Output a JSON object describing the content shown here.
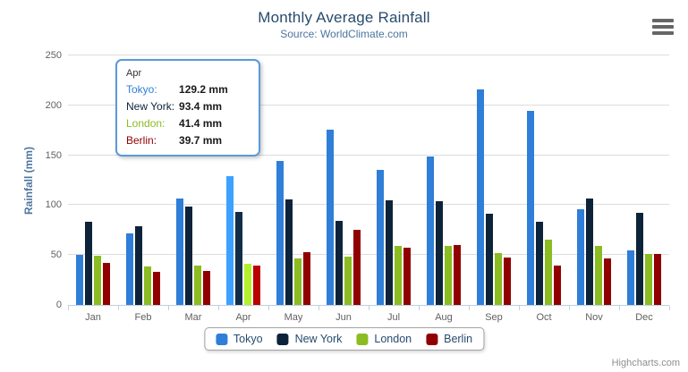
{
  "header": {
    "title": "Monthly Average Rainfall",
    "subtitle": "Source: WorldClimate.com"
  },
  "chart_data": {
    "type": "bar",
    "title": "Monthly Average Rainfall",
    "subtitle": "Source: WorldClimate.com",
    "categories": [
      "Jan",
      "Feb",
      "Mar",
      "Apr",
      "May",
      "Jun",
      "Jul",
      "Aug",
      "Sep",
      "Oct",
      "Nov",
      "Dec"
    ],
    "series": [
      {
        "name": "Tokyo",
        "color": "#2f7ed8",
        "values": [
          49.9,
          71.5,
          106.4,
          129.2,
          144.0,
          176.0,
          135.6,
          148.5,
          216.4,
          194.1,
          95.6,
          54.4
        ]
      },
      {
        "name": "New York",
        "color": "#0d233a",
        "values": [
          83.6,
          78.8,
          98.5,
          93.4,
          106.0,
          84.5,
          105.0,
          104.3,
          91.2,
          83.5,
          106.6,
          92.3
        ]
      },
      {
        "name": "London",
        "color": "#8bbc21",
        "values": [
          48.9,
          38.8,
          39.3,
          41.4,
          47.0,
          48.3,
          59.0,
          59.6,
          52.4,
          65.2,
          59.3,
          51.2
        ]
      },
      {
        "name": "Berlin",
        "color": "#910000",
        "values": [
          42.4,
          33.2,
          34.5,
          39.7,
          52.6,
          75.5,
          57.4,
          60.4,
          47.6,
          39.1,
          46.8,
          51.1
        ]
      }
    ],
    "xlabel": "",
    "ylabel": "Rainfall (mm)",
    "ylim": [
      0,
      250
    ],
    "yticks": [
      0,
      50,
      100,
      150,
      200,
      250
    ],
    "grid": true,
    "legend_position": "bottom",
    "hovered_category": "Apr",
    "value_suffix": " mm"
  },
  "tooltip": {
    "header": "Apr",
    "rows": [
      {
        "name": "Tokyo:",
        "value": "129.2 mm",
        "color": "#2f7ed8"
      },
      {
        "name": "New York:",
        "value": "93.4 mm",
        "color": "#0d233a"
      },
      {
        "name": "London:",
        "value": "41.4 mm",
        "color": "#8bbc21"
      },
      {
        "name": "Berlin:",
        "value": "39.7 mm",
        "color": "#910000"
      }
    ]
  },
  "footer": {
    "credits": "Highcharts.com"
  }
}
